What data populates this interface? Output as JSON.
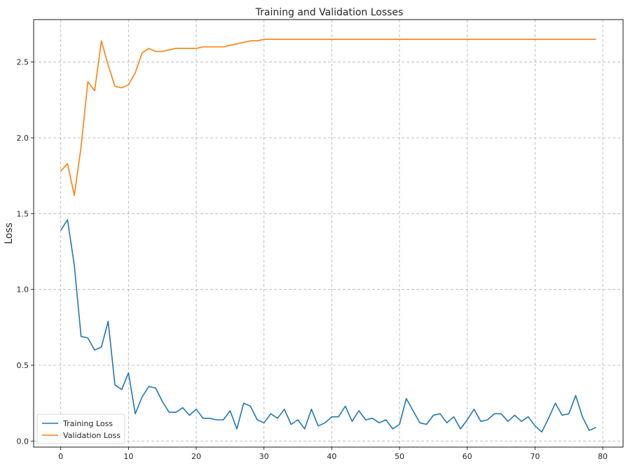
{
  "chart_data": {
    "type": "line",
    "title": "Training and Validation Losses",
    "xlabel": "",
    "ylabel": "Loss",
    "xlim": [
      -4,
      83
    ],
    "ylim": [
      -0.04,
      2.78
    ],
    "xticks": [
      0,
      10,
      20,
      30,
      40,
      50,
      60,
      70,
      80
    ],
    "yticks": [
      0.0,
      0.5,
      1.0,
      1.5,
      2.0,
      2.5
    ],
    "xtick_labels": [
      "0",
      "10",
      "20",
      "30",
      "40",
      "50",
      "60",
      "70",
      "80"
    ],
    "ytick_labels": [
      "0.0",
      "0.5",
      "1.0",
      "1.5",
      "2.0",
      "2.5"
    ],
    "grid": true,
    "legend_position": "lower-left",
    "series": [
      {
        "name": "Training Loss",
        "color": "#1f77b4",
        "values": [
          1.39,
          1.46,
          1.16,
          0.69,
          0.68,
          0.6,
          0.62,
          0.79,
          0.37,
          0.34,
          0.45,
          0.18,
          0.29,
          0.36,
          0.35,
          0.26,
          0.19,
          0.19,
          0.22,
          0.17,
          0.21,
          0.15,
          0.15,
          0.14,
          0.14,
          0.2,
          0.08,
          0.25,
          0.23,
          0.14,
          0.12,
          0.18,
          0.15,
          0.21,
          0.11,
          0.14,
          0.08,
          0.21,
          0.1,
          0.12,
          0.16,
          0.16,
          0.23,
          0.13,
          0.2,
          0.14,
          0.15,
          0.12,
          0.14,
          0.08,
          0.11,
          0.28,
          0.2,
          0.12,
          0.11,
          0.17,
          0.18,
          0.12,
          0.16,
          0.08,
          0.14,
          0.21,
          0.13,
          0.14,
          0.18,
          0.18,
          0.13,
          0.17,
          0.13,
          0.16,
          0.1,
          0.06,
          0.15,
          0.25,
          0.17,
          0.18,
          0.3,
          0.16,
          0.07,
          0.09
        ]
      },
      {
        "name": "Validation Loss",
        "color": "#ff7f0e",
        "values": [
          1.78,
          1.83,
          1.62,
          1.94,
          2.37,
          2.31,
          2.64,
          2.48,
          2.34,
          2.33,
          2.35,
          2.43,
          2.56,
          2.59,
          2.57,
          2.57,
          2.58,
          2.59,
          2.59,
          2.59,
          2.59,
          2.6,
          2.6,
          2.6,
          2.6,
          2.61,
          2.62,
          2.63,
          2.64,
          2.64,
          2.65,
          2.65,
          2.65,
          2.65,
          2.65,
          2.65,
          2.65,
          2.65,
          2.65,
          2.65,
          2.65,
          2.65,
          2.65,
          2.65,
          2.65,
          2.65,
          2.65,
          2.65,
          2.65,
          2.65,
          2.65,
          2.65,
          2.65,
          2.65,
          2.65,
          2.65,
          2.65,
          2.65,
          2.65,
          2.65,
          2.65,
          2.65,
          2.65,
          2.65,
          2.65,
          2.65,
          2.65,
          2.65,
          2.65,
          2.65,
          2.65,
          2.65,
          2.65,
          2.65,
          2.65,
          2.65,
          2.65,
          2.65,
          2.65,
          2.65
        ]
      }
    ]
  }
}
